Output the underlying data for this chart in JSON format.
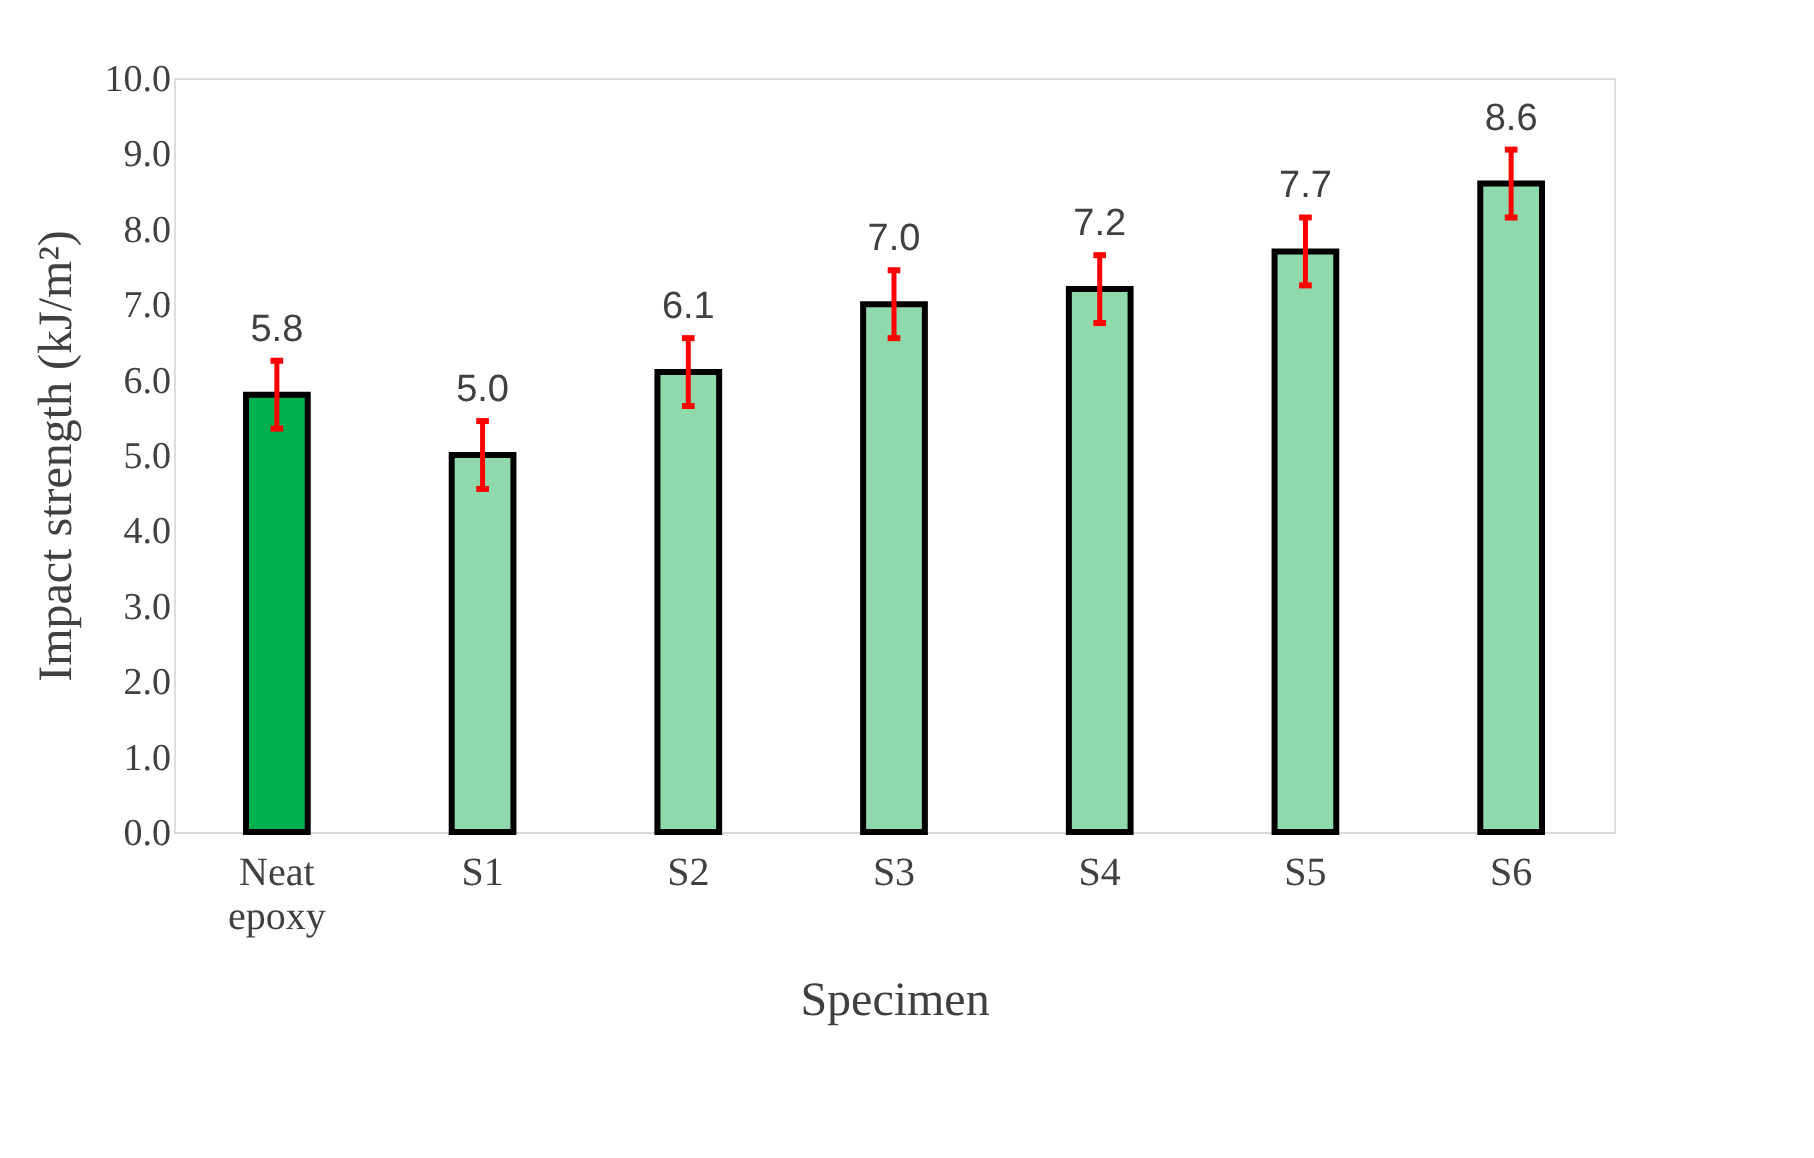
{
  "chart_data": {
    "type": "bar",
    "xlabel": "Specimen",
    "ylabel": "Impact strength (kJ/m²)",
    "categories": [
      "Neat epoxy",
      "S1",
      "S2",
      "S3",
      "S4",
      "S5",
      "S6"
    ],
    "values": [
      5.8,
      5.0,
      6.1,
      7.0,
      7.2,
      7.7,
      8.6
    ],
    "value_labels": [
      "5.8",
      "5.0",
      "6.1",
      "7.0",
      "7.2",
      "7.7",
      "8.6"
    ],
    "errors": [
      0.45,
      0.45,
      0.45,
      0.45,
      0.45,
      0.45,
      0.45
    ],
    "colors": [
      "#00b050",
      "#8fd9ad",
      "#8fd9ad",
      "#8fd9ad",
      "#8fd9ad",
      "#8fd9ad",
      "#8fd9ad"
    ],
    "ylim": [
      0,
      10
    ],
    "yticks": [
      {
        "value": 0,
        "label": "0.0"
      },
      {
        "value": 1,
        "label": "1.0"
      },
      {
        "value": 2,
        "label": "2.0"
      },
      {
        "value": 3,
        "label": "3.0"
      },
      {
        "value": 4,
        "label": "4.0"
      },
      {
        "value": 5,
        "label": "5.0"
      },
      {
        "value": 6,
        "label": "6.0"
      },
      {
        "value": 7,
        "label": "7.0"
      },
      {
        "value": 8,
        "label": "8.0"
      },
      {
        "value": 9,
        "label": "9.0"
      },
      {
        "value": 10,
        "label": "10.0"
      }
    ],
    "grid": false
  }
}
